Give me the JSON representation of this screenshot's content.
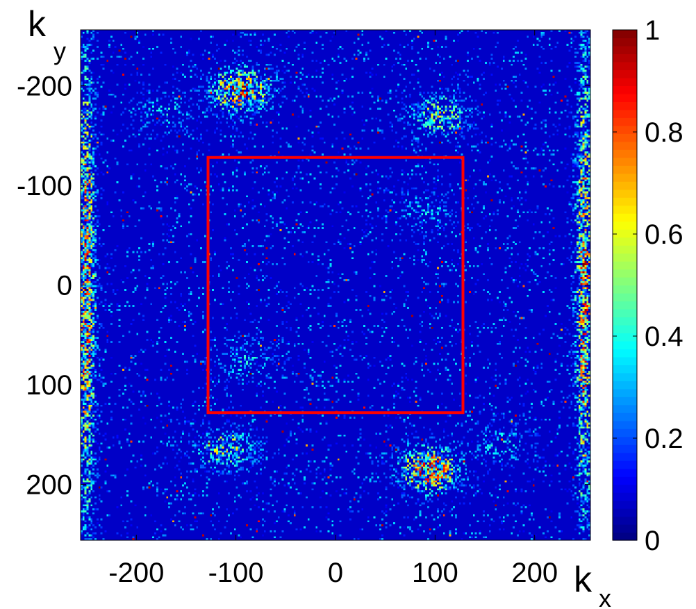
{
  "chart_data": {
    "type": "heatmap",
    "title": "",
    "xlabel": {
      "symbol": "k",
      "subscript": "x"
    },
    "ylabel": {
      "symbol": "k",
      "subscript": "y"
    },
    "xlim": [
      -256,
      256
    ],
    "ylim": [
      -256,
      256
    ],
    "y_axis_direction": "down",
    "x_ticks": [
      -200,
      -100,
      0,
      100,
      200
    ],
    "y_ticks": [
      -200,
      -100,
      0,
      100,
      200
    ],
    "colorbar": {
      "colormap": "jet",
      "range": [
        0,
        1
      ],
      "ticks": [
        0,
        0.2,
        0.4,
        0.6,
        0.8,
        1
      ],
      "tick_labels": [
        "0",
        "0.2",
        "0.4",
        "0.6",
        "0.8",
        "1"
      ]
    },
    "background_value": 0.07,
    "grid": false,
    "annotations": [
      {
        "type": "rectangle",
        "color": "#ff0000",
        "x_range": [
          -128,
          128
        ],
        "y_range": [
          -128,
          128
        ]
      }
    ],
    "hotspots": [
      {
        "x": -95,
        "y": -195,
        "peak": 0.85,
        "note": "upper-left cluster"
      },
      {
        "x": 95,
        "y": 185,
        "peak": 0.9,
        "note": "lower-right cluster"
      },
      {
        "x": 105,
        "y": -170,
        "peak": 0.55
      },
      {
        "x": -110,
        "y": 165,
        "peak": 0.55
      },
      {
        "x": -170,
        "y": -175,
        "peak": 0.3
      },
      {
        "x": 165,
        "y": 160,
        "peak": 0.3
      },
      {
        "x": -250,
        "y": 0,
        "peak": 0.8,
        "note": "left edge band"
      },
      {
        "x": 250,
        "y": 0,
        "peak": 0.8,
        "note": "right edge band"
      },
      {
        "x": 90,
        "y": -75,
        "peak": 0.3
      },
      {
        "x": -90,
        "y": 75,
        "peak": 0.3
      }
    ]
  }
}
